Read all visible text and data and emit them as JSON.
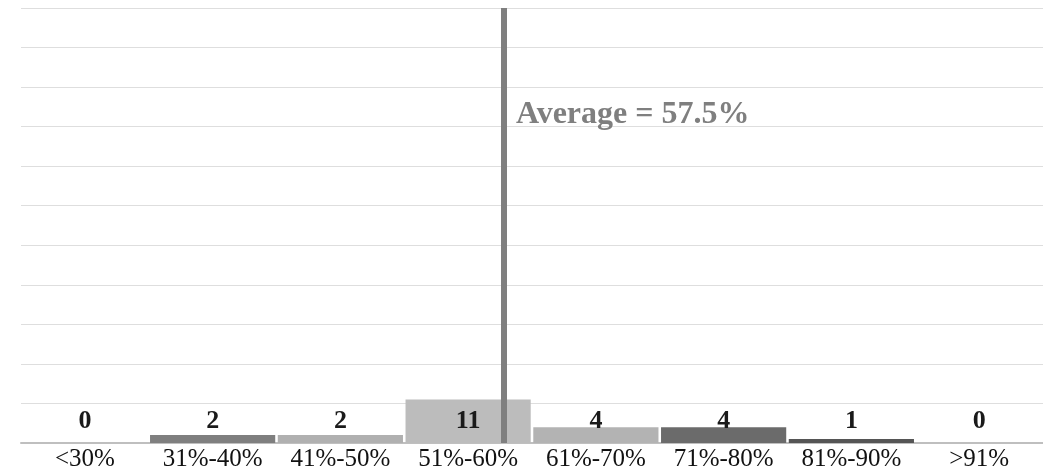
{
  "chart_data": {
    "type": "bar",
    "categories": [
      "<30%",
      "31%-40%",
      "41%-50%",
      "51%-60%",
      "61%-70%",
      "71%-80%",
      "81%-90%",
      ">91%"
    ],
    "values": [
      0,
      2,
      2,
      11,
      4,
      4,
      1,
      0
    ],
    "colors": [
      "#9a9a9a",
      "#7f7f7f",
      "#b0b0b0",
      "#bcbcbc",
      "#b3b3b3",
      "#6b6b6b",
      "#555555",
      "#9a9a9a"
    ],
    "data_labels": true,
    "ylim": [
      0,
      110
    ],
    "yticks": [
      {
        "value": 0,
        "label": null
      },
      {
        "value": 10,
        "label": null
      },
      {
        "value": 20,
        "label": null
      },
      {
        "value": 30,
        "label": null
      },
      {
        "value": 40,
        "label": null
      },
      {
        "value": 50,
        "label": null
      },
      {
        "value": 60,
        "label": null
      },
      {
        "value": 70,
        "label": null
      },
      {
        "value": 80,
        "label": null
      },
      {
        "value": 90,
        "label": null
      },
      {
        "value": 100,
        "label": null
      },
      {
        "value": 110,
        "label": null
      }
    ],
    "tick_labels": "x",
    "grid": "y",
    "ref_lines": [
      {
        "axis": "x",
        "value": "51%-60%",
        "label": "Average = 57.5%",
        "color": "#7f7f7f"
      }
    ]
  }
}
